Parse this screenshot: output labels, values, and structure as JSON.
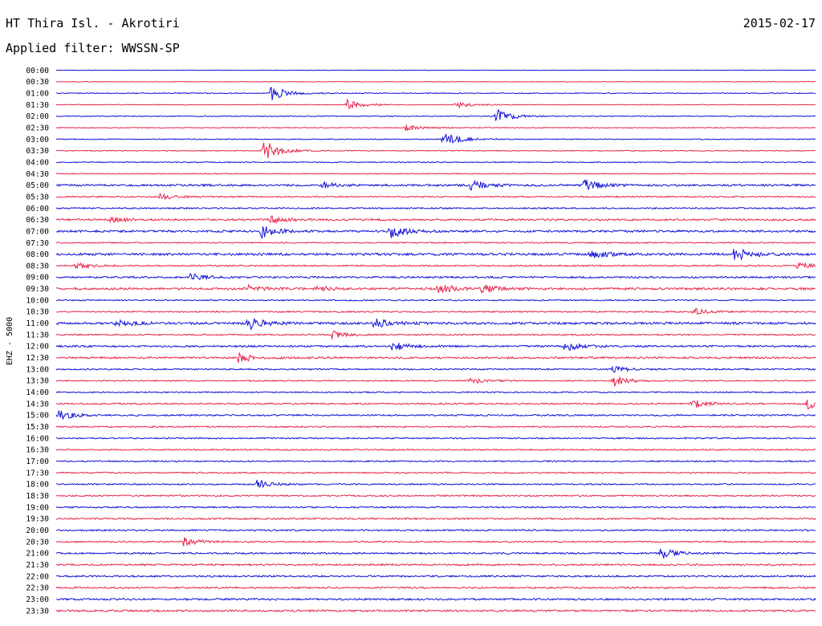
{
  "header": {
    "station": "HT Thira Isl. - Akrotiri",
    "filter": "Applied filter: WWSSN-SP",
    "date": "2015-02-17"
  },
  "chart_data": {
    "type": "line",
    "title": "HT Thira Isl. - Akrotiri",
    "subtitle": "Applied filter: WWSSN-SP",
    "date": "2015-02-17",
    "ylabel": "EHZ - 5000",
    "row_labels": [
      "00:00",
      "00:30",
      "01:00",
      "01:30",
      "02:00",
      "02:30",
      "03:00",
      "03:30",
      "04:00",
      "04:30",
      "05:00",
      "05:30",
      "06:00",
      "06:30",
      "07:00",
      "07:30",
      "08:00",
      "08:30",
      "09:00",
      "09:30",
      "10:00",
      "10:30",
      "11:00",
      "11:30",
      "12:00",
      "12:30",
      "13:00",
      "13:30",
      "14:00",
      "14:30",
      "15:00",
      "15:30",
      "16:00",
      "16:30",
      "17:00",
      "17:30",
      "18:00",
      "18:30",
      "19:00",
      "19:30",
      "20:00",
      "20:30",
      "21:00",
      "21:30",
      "22:00",
      "22:30",
      "23:00",
      "23:30"
    ],
    "trace_colors": [
      "#1010d8",
      "#e8254a"
    ],
    "minutes_per_row": 30,
    "noise_levels": [
      0.5,
      0.7,
      1.0,
      0.8,
      1.0,
      0.9,
      1.0,
      1.0,
      1.1,
      1.0,
      2.2,
      1.5,
      1.6,
      2.1,
      2.3,
      1.4,
      2.6,
      1.6,
      2.0,
      2.4,
      1.4,
      1.5,
      2.6,
      1.6,
      2.0,
      2.1,
      1.6,
      1.4,
      1.4,
      1.7,
      1.7,
      1.5,
      1.5,
      1.5,
      1.5,
      1.5,
      1.5,
      1.6,
      1.6,
      1.8,
      1.8,
      1.6,
      1.8,
      1.9,
      1.9,
      1.9,
      2.0,
      2.1
    ],
    "events": [
      {
        "row": 2,
        "minute": 8.5,
        "amplitude": 10
      },
      {
        "row": 3,
        "minute": 11.5,
        "amplitude": 6
      },
      {
        "row": 3,
        "minute": 15.8,
        "amplitude": 4
      },
      {
        "row": 4,
        "minute": 17.4,
        "amplitude": 9
      },
      {
        "row": 5,
        "minute": 13.8,
        "amplitude": 4
      },
      {
        "row": 6,
        "minute": 15.3,
        "amplitude": 10
      },
      {
        "row": 7,
        "minute": 8.2,
        "amplitude": 14
      },
      {
        "row": 10,
        "minute": 10.5,
        "amplitude": 4
      },
      {
        "row": 10,
        "minute": 16.4,
        "amplitude": 7
      },
      {
        "row": 10,
        "minute": 20.8,
        "amplitude": 9
      },
      {
        "row": 11,
        "minute": 4.1,
        "amplitude": 4
      },
      {
        "row": 13,
        "minute": 2.1,
        "amplitude": 4
      },
      {
        "row": 13,
        "minute": 8.5,
        "amplitude": 4
      },
      {
        "row": 14,
        "minute": 8.1,
        "amplitude": 8
      },
      {
        "row": 14,
        "minute": 13.2,
        "amplitude": 9
      },
      {
        "row": 16,
        "minute": 21.1,
        "amplitude": 6
      },
      {
        "row": 16,
        "minute": 26.8,
        "amplitude": 9
      },
      {
        "row": 17,
        "minute": 0.8,
        "amplitude": 4
      },
      {
        "row": 17,
        "minute": 29.3,
        "amplitude": 4
      },
      {
        "row": 18,
        "minute": 5.3,
        "amplitude": 4
      },
      {
        "row": 19,
        "minute": 7.6,
        "amplitude": 5
      },
      {
        "row": 19,
        "minute": 10.2,
        "amplitude": 4
      },
      {
        "row": 19,
        "minute": 15.1,
        "amplitude": 7
      },
      {
        "row": 19,
        "minute": 16.8,
        "amplitude": 5
      },
      {
        "row": 21,
        "minute": 25.2,
        "amplitude": 4
      },
      {
        "row": 22,
        "minute": 2.4,
        "amplitude": 5
      },
      {
        "row": 22,
        "minute": 7.6,
        "amplitude": 8
      },
      {
        "row": 22,
        "minute": 12.5,
        "amplitude": 7
      },
      {
        "row": 23,
        "minute": 10.9,
        "amplitude": 5
      },
      {
        "row": 24,
        "minute": 13.3,
        "amplitude": 6
      },
      {
        "row": 24,
        "minute": 20.1,
        "amplitude": 6
      },
      {
        "row": 25,
        "minute": 7.2,
        "amplitude": 6
      },
      {
        "row": 26,
        "minute": 22.0,
        "amplitude": 4
      },
      {
        "row": 27,
        "minute": 16.3,
        "amplitude": 4
      },
      {
        "row": 27,
        "minute": 22.0,
        "amplitude": 7
      },
      {
        "row": 29,
        "minute": 25.1,
        "amplitude": 6
      },
      {
        "row": 29,
        "minute": 29.7,
        "amplitude": 7
      },
      {
        "row": 30,
        "minute": 0.1,
        "amplitude": 6
      },
      {
        "row": 36,
        "minute": 7.9,
        "amplitude": 6
      },
      {
        "row": 41,
        "minute": 5.0,
        "amplitude": 6
      },
      {
        "row": 42,
        "minute": 23.9,
        "amplitude": 7
      }
    ]
  }
}
